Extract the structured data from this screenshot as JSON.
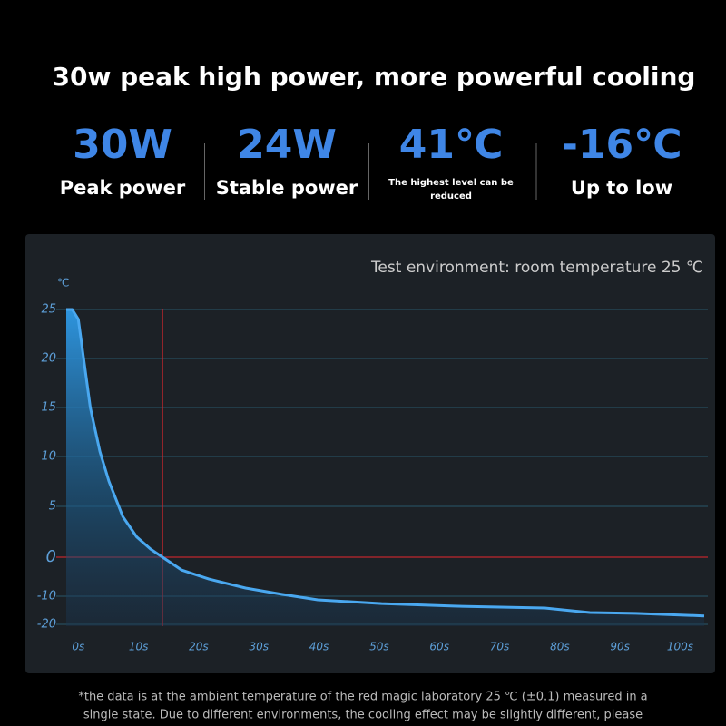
{
  "header": {
    "title": "30w peak high power, more powerful cooling"
  },
  "stats": [
    {
      "value": "30W",
      "label": "Peak power"
    },
    {
      "value": "24W",
      "label": "Stable power"
    },
    {
      "value": "41℃",
      "label": "The highest level can be reduced"
    },
    {
      "value": "-16℃",
      "label": "Up to low"
    }
  ],
  "chart_data": {
    "type": "area",
    "title": "Test environment: room temperature 25 ℃",
    "y_unit": "℃",
    "x": [
      -2,
      -1,
      0,
      1,
      2,
      3.6,
      5.1,
      7.4,
      9.7,
      12,
      14,
      17.2,
      21.7,
      27.8,
      33.8,
      39.8,
      50.4,
      62.4,
      77.5,
      85,
      92.6,
      104
    ],
    "values": [
      25,
      25,
      24,
      19.5,
      15,
      10.5,
      7.5,
      4,
      2,
      0.8,
      0,
      -3.3,
      -5.6,
      -7.9,
      -9.5,
      -11.3,
      -12.6,
      -13.5,
      -14.2,
      -15.8,
      -16.1,
      -17
    ],
    "color": "#4aa8f0",
    "xlim": [
      -2,
      104
    ],
    "xticks": [
      {
        "value": 0,
        "label": "0s"
      },
      {
        "value": 10,
        "label": "10s"
      },
      {
        "value": 20,
        "label": "20s"
      },
      {
        "value": 30,
        "label": "30s"
      },
      {
        "value": 40,
        "label": "40s"
      },
      {
        "value": 50,
        "label": "50s"
      },
      {
        "value": 60,
        "label": "60s"
      },
      {
        "value": 70,
        "label": "70s"
      },
      {
        "value": 80,
        "label": "80s"
      },
      {
        "value": 90,
        "label": "90s"
      },
      {
        "value": 100,
        "label": "100s"
      }
    ],
    "ylim": [
      -20,
      25
    ],
    "yticks": [
      25,
      20,
      15,
      10,
      5,
      0,
      -10,
      -20
    ],
    "grid": true,
    "reference_lines": {
      "x": 14,
      "y": 0,
      "color": "#c0272d"
    }
  },
  "footnote": [
    "*the data is at the ambient temperature of the red magic laboratory 25 ℃ (±0.1) measured in a",
    "single state. Due to different environments, the cooling effect may be slightly different, please"
  ]
}
